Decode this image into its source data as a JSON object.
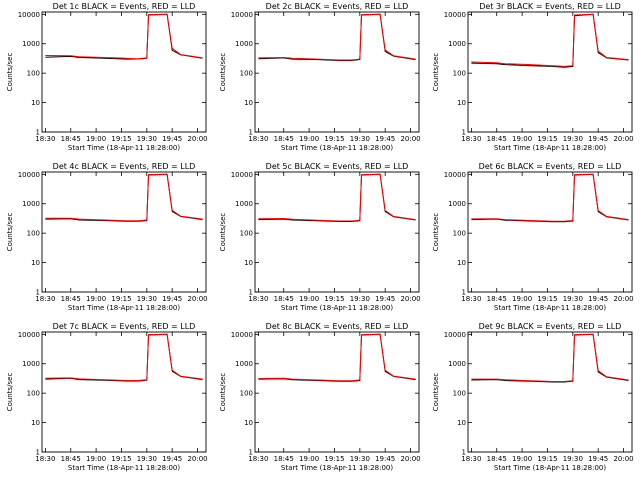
{
  "x_ticks": [
    "18:30",
    "18:45",
    "19:00",
    "19:15",
    "19:30",
    "19:45",
    "20:00"
  ],
  "y_ticks": [
    "1",
    "10",
    "100",
    "1000",
    "10000"
  ],
  "ylabel": "Counts/sec",
  "xlabel": "Start Time (18-Apr-11 18:28:00)",
  "colors": {
    "events": "#000000",
    "lld": "#ff0000"
  },
  "chart_data": [
    {
      "type": "line",
      "title": "Det 1c BLACK = Events, RED = LLD",
      "x": [
        "18:30",
        "18:45",
        "18:50",
        "19:05",
        "19:18",
        "19:25",
        "19:30",
        "19:31",
        "19:42",
        "19:45",
        "19:50",
        "20:03"
      ],
      "xlim": [
        "18:28",
        "20:05"
      ],
      "ylim": [
        1,
        12000
      ],
      "yscale": "log",
      "series": [
        {
          "values": [
            350,
            370,
            340,
            320,
            300,
            305,
            320,
            9500,
            10000,
            600,
            420,
            320
          ]
        },
        {
          "values": [
            400,
            390,
            360,
            340,
            320,
            310,
            330,
            9800,
            10000,
            700,
            430,
            330
          ]
        }
      ]
    },
    {
      "type": "line",
      "title": "Det 2c BLACK = Events, RED = LLD",
      "x": [
        "18:30",
        "18:45",
        "18:50",
        "19:05",
        "19:18",
        "19:25",
        "19:30",
        "19:31",
        "19:42",
        "19:45",
        "19:50",
        "20:03"
      ],
      "xlim": [
        "18:28",
        "20:05"
      ],
      "ylim": [
        1,
        12000
      ],
      "yscale": "log",
      "series": [
        {
          "values": [
            310,
            330,
            300,
            290,
            270,
            270,
            290,
            9500,
            10000,
            550,
            380,
            290
          ]
        },
        {
          "values": [
            330,
            340,
            320,
            300,
            280,
            280,
            300,
            9800,
            10000,
            620,
            390,
            300
          ]
        }
      ]
    },
    {
      "type": "line",
      "title": "Det 3r BLACK = Events, RED = LLD",
      "x": [
        "18:30",
        "18:45",
        "18:50",
        "19:05",
        "19:18",
        "19:25",
        "19:30",
        "19:31",
        "19:42",
        "19:45",
        "19:50",
        "20:03"
      ],
      "xlim": [
        "18:28",
        "20:05"
      ],
      "ylim": [
        1,
        12000
      ],
      "yscale": "log",
      "series": [
        {
          "values": [
            220,
            210,
            195,
            180,
            170,
            160,
            170,
            9000,
            10000,
            500,
            330,
            280
          ]
        },
        {
          "values": [
            240,
            225,
            210,
            195,
            180,
            170,
            180,
            9500,
            10000,
            560,
            340,
            290
          ]
        }
      ]
    },
    {
      "type": "line",
      "title": "Det 4c BLACK = Events, RED = LLD",
      "x": [
        "18:30",
        "18:45",
        "18:50",
        "19:05",
        "19:18",
        "19:25",
        "19:30",
        "19:31",
        "19:42",
        "19:45",
        "19:50",
        "20:03"
      ],
      "xlim": [
        "18:28",
        "20:05"
      ],
      "ylim": [
        1,
        12000
      ],
      "yscale": "log",
      "series": [
        {
          "values": [
            300,
            310,
            280,
            270,
            255,
            255,
            270,
            9500,
            10000,
            550,
            370,
            290
          ]
        },
        {
          "values": [
            320,
            320,
            300,
            280,
            265,
            265,
            280,
            9800,
            10000,
            600,
            380,
            300
          ]
        }
      ]
    },
    {
      "type": "line",
      "title": "Det 5c BLACK = Events, RED = LLD",
      "x": [
        "18:30",
        "18:45",
        "18:50",
        "19:05",
        "19:18",
        "19:25",
        "19:30",
        "19:31",
        "19:42",
        "19:45",
        "19:50",
        "20:03"
      ],
      "xlim": [
        "18:28",
        "20:05"
      ],
      "ylim": [
        1,
        12000
      ],
      "yscale": "log",
      "series": [
        {
          "values": [
            290,
            300,
            280,
            265,
            250,
            250,
            265,
            9500,
            10000,
            540,
            360,
            280
          ]
        },
        {
          "values": [
            310,
            315,
            295,
            275,
            260,
            260,
            275,
            9800,
            10000,
            590,
            370,
            290
          ]
        }
      ]
    },
    {
      "type": "line",
      "title": "Det 6c BLACK = Events, RED = LLD",
      "x": [
        "18:30",
        "18:45",
        "18:50",
        "19:05",
        "19:18",
        "19:25",
        "19:30",
        "19:31",
        "19:42",
        "19:45",
        "19:50",
        "20:03"
      ],
      "xlim": [
        "18:28",
        "20:05"
      ],
      "ylim": [
        1,
        12000
      ],
      "yscale": "log",
      "series": [
        {
          "values": [
            290,
            300,
            275,
            260,
            245,
            245,
            260,
            9500,
            10000,
            540,
            360,
            280
          ]
        },
        {
          "values": [
            305,
            310,
            290,
            270,
            255,
            255,
            270,
            9800,
            10000,
            590,
            370,
            290
          ]
        }
      ]
    },
    {
      "type": "line",
      "title": "Det 7c BLACK = Events, RED = LLD",
      "x": [
        "18:30",
        "18:45",
        "18:50",
        "19:05",
        "19:18",
        "19:25",
        "19:30",
        "19:31",
        "19:42",
        "19:45",
        "19:50",
        "20:03"
      ],
      "xlim": [
        "18:28",
        "20:05"
      ],
      "ylim": [
        1,
        12000
      ],
      "yscale": "log",
      "series": [
        {
          "values": [
            300,
            320,
            290,
            275,
            260,
            260,
            275,
            9500,
            10000,
            560,
            370,
            290
          ]
        },
        {
          "values": [
            320,
            330,
            305,
            285,
            270,
            270,
            285,
            9800,
            10000,
            610,
            380,
            300
          ]
        }
      ]
    },
    {
      "type": "line",
      "title": "Det 8c BLACK = Events, RED = LLD",
      "x": [
        "18:30",
        "18:45",
        "18:50",
        "19:05",
        "19:18",
        "19:25",
        "19:30",
        "19:31",
        "19:42",
        "19:45",
        "19:50",
        "20:03"
      ],
      "xlim": [
        "18:28",
        "20:05"
      ],
      "ylim": [
        1,
        12000
      ],
      "yscale": "log",
      "series": [
        {
          "values": [
            300,
            310,
            285,
            270,
            255,
            255,
            270,
            9500,
            10000,
            550,
            370,
            290
          ]
        },
        {
          "values": [
            315,
            320,
            300,
            280,
            265,
            265,
            280,
            9800,
            10000,
            600,
            380,
            300
          ]
        }
      ]
    },
    {
      "type": "line",
      "title": "Det 9c BLACK = Events, RED = LLD",
      "x": [
        "18:30",
        "18:45",
        "18:50",
        "19:05",
        "19:18",
        "19:25",
        "19:30",
        "19:31",
        "19:42",
        "19:45",
        "19:50",
        "20:03"
      ],
      "xlim": [
        "18:28",
        "20:05"
      ],
      "ylim": [
        1,
        12000
      ],
      "yscale": "log",
      "series": [
        {
          "values": [
            280,
            290,
            270,
            255,
            240,
            240,
            255,
            9500,
            10000,
            530,
            350,
            270
          ]
        },
        {
          "values": [
            300,
            300,
            285,
            265,
            250,
            250,
            265,
            9800,
            10000,
            580,
            360,
            280
          ]
        }
      ]
    }
  ]
}
